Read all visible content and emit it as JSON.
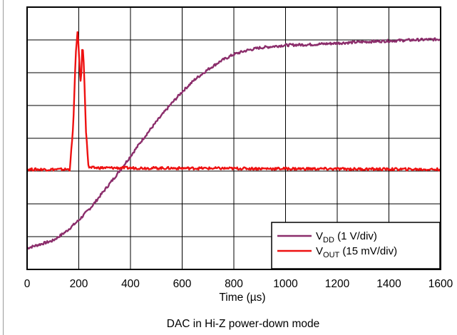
{
  "chart_data": {
    "type": "line",
    "caption": "DAC in Hi-Z power-down mode",
    "xlabel_prefix": "Time (",
    "xlabel_unit": "µs",
    "xlabel_suffix": ")",
    "xlim": [
      0,
      1600
    ],
    "xticks": [
      0,
      200,
      400,
      600,
      800,
      1000,
      1200,
      1400,
      1600
    ],
    "ylim": [
      0,
      8
    ],
    "grid": true,
    "legend_position": "bottom-right",
    "series": [
      {
        "name_main": "V",
        "name_sub": "DD",
        "name_rest": " (1 V/div)",
        "color": "#8b2d6b",
        "x": [
          0,
          100,
          150,
          200,
          250,
          300,
          350,
          400,
          450,
          500,
          550,
          600,
          650,
          700,
          750,
          800,
          850,
          900,
          950,
          1000,
          1100,
          1200,
          1300,
          1400,
          1500,
          1600
        ],
        "y": [
          0.65,
          0.88,
          1.15,
          1.5,
          1.92,
          2.42,
          2.92,
          3.45,
          4.0,
          4.5,
          4.98,
          5.42,
          5.8,
          6.1,
          6.36,
          6.56,
          6.68,
          6.76,
          6.8,
          6.84,
          6.86,
          6.9,
          6.94,
          6.97,
          7.0,
          7.02
        ]
      },
      {
        "name_main": "V",
        "name_sub": "OUT",
        "name_rest": " (15 mV/div)",
        "color": "#ee1111",
        "x": [
          0,
          165,
          178,
          188,
          196,
          202,
          208,
          214,
          220,
          228,
          238,
          1600
        ],
        "y": [
          3.05,
          3.05,
          4.3,
          6.5,
          7.35,
          6.3,
          5.6,
          6.9,
          6.2,
          4.2,
          3.1,
          3.05
        ]
      }
    ]
  }
}
